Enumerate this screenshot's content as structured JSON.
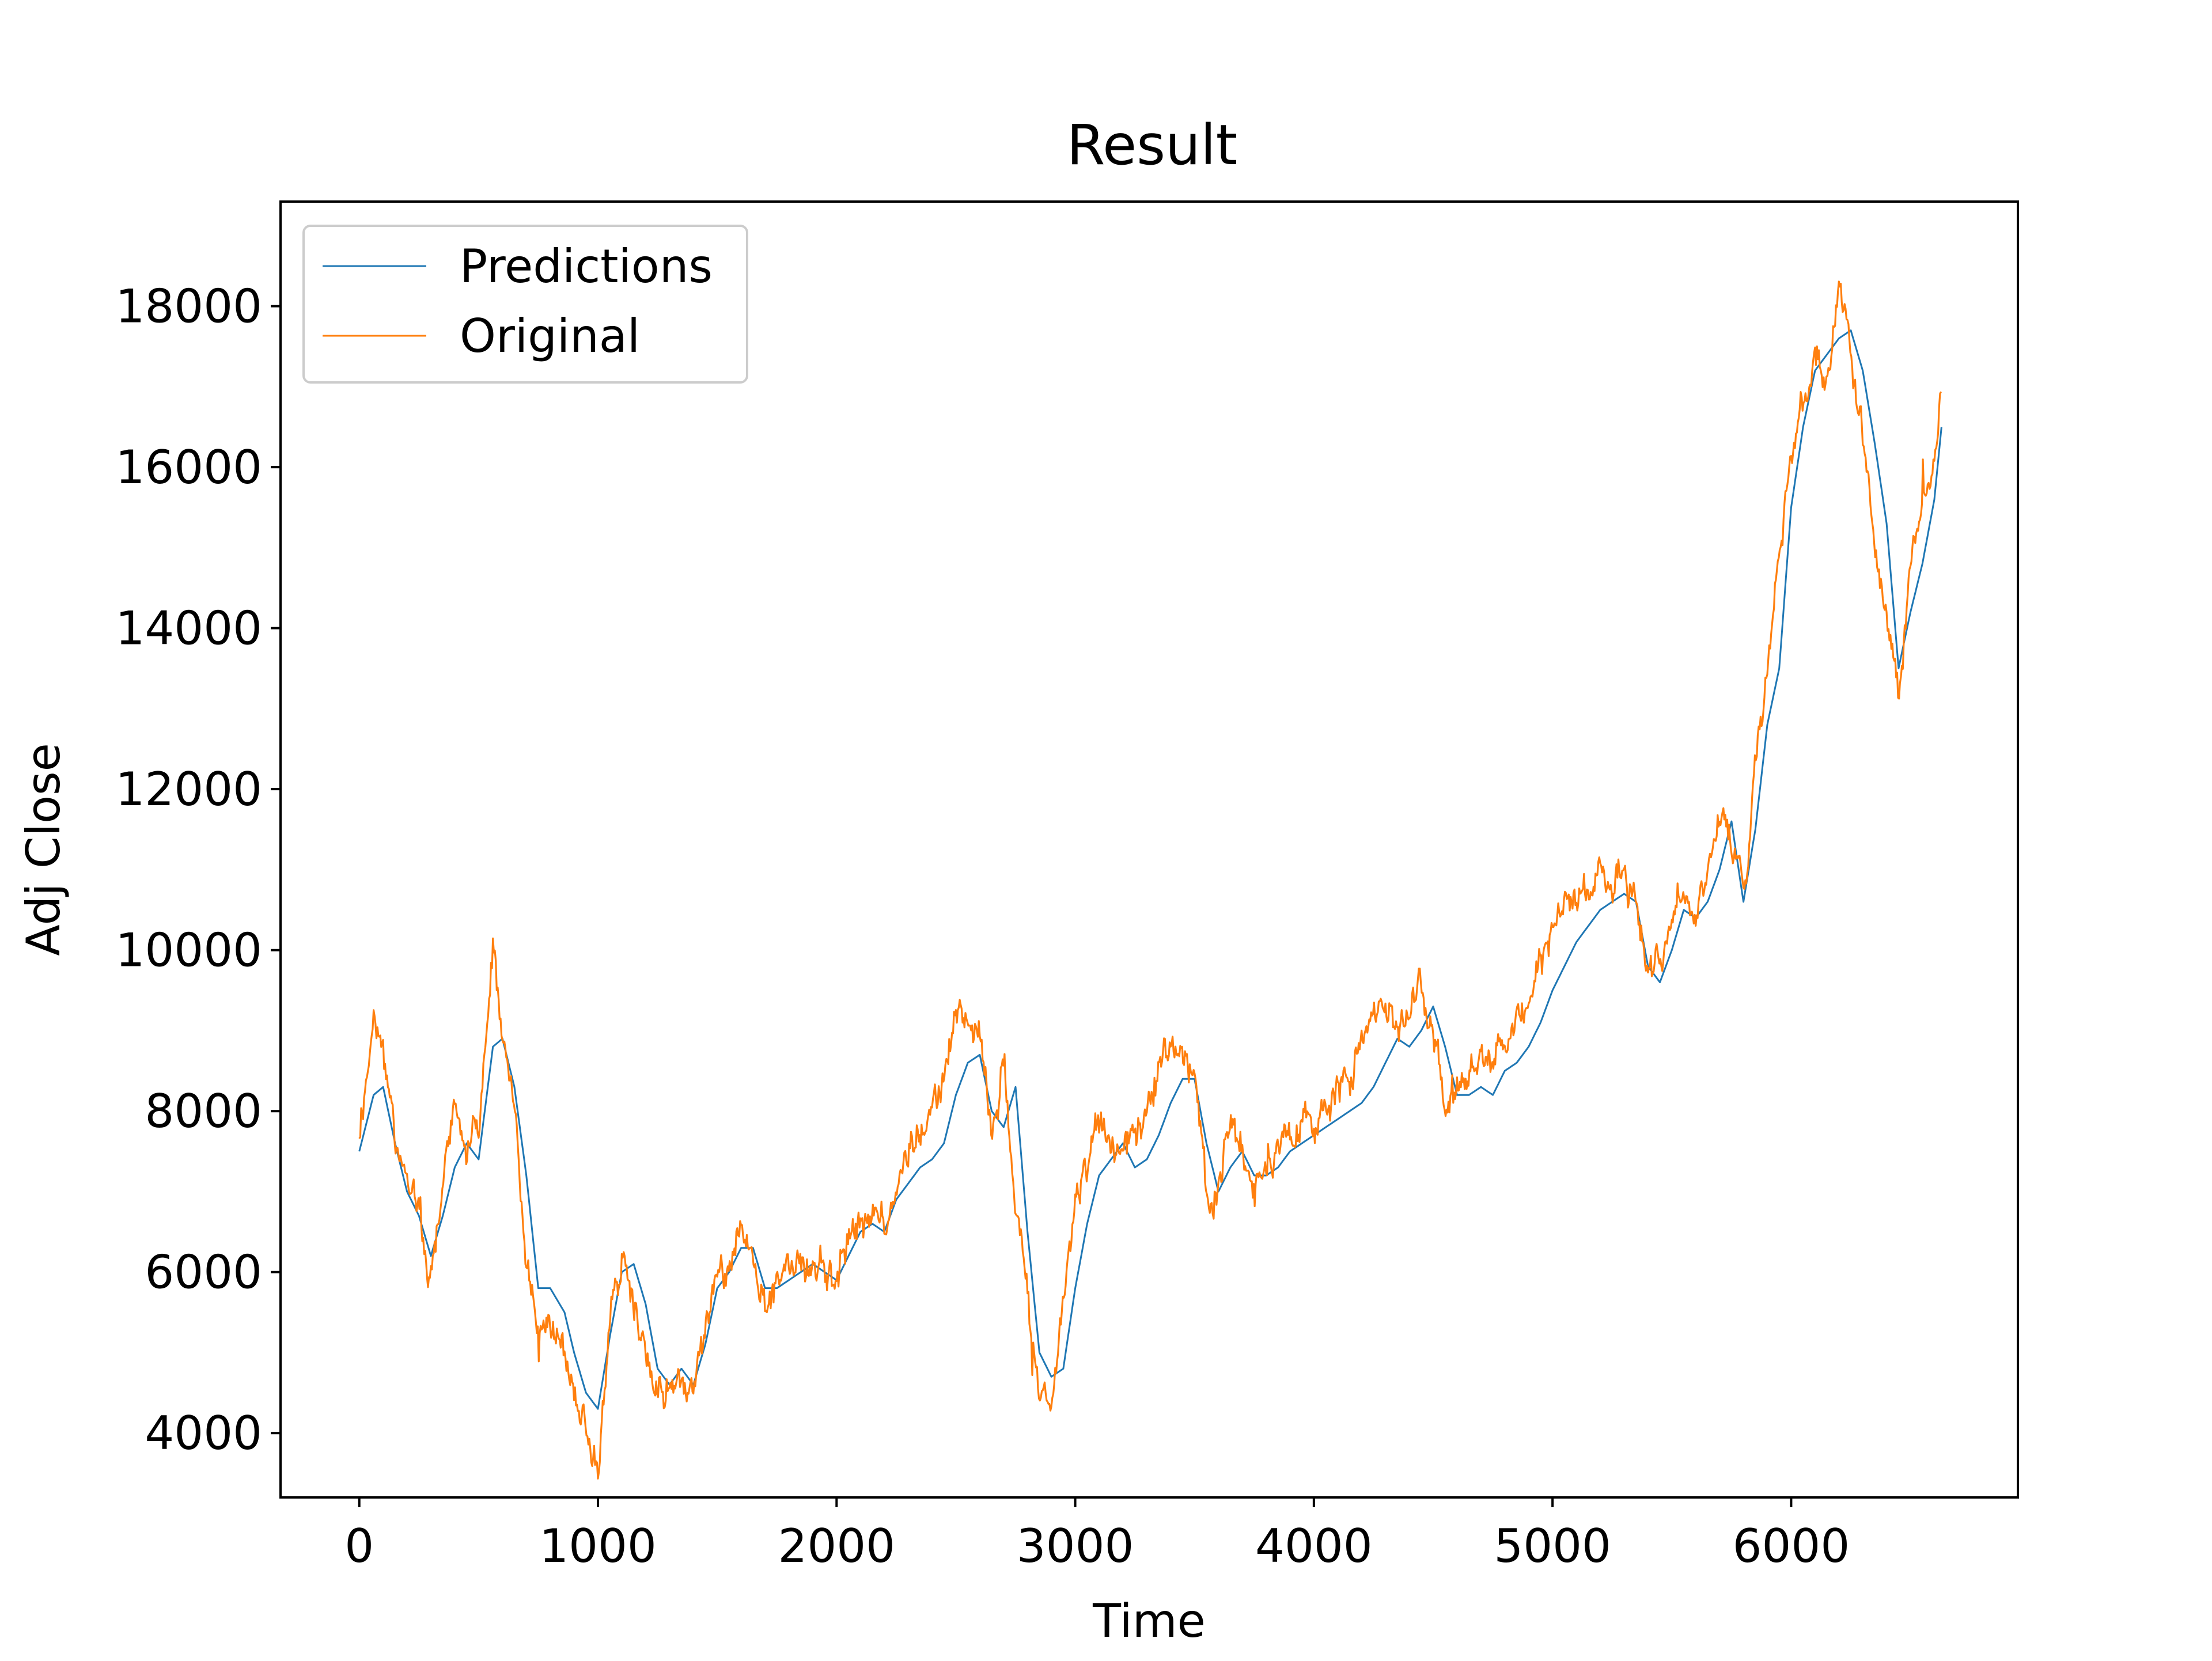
{
  "chart_data": {
    "type": "line",
    "title": "Result",
    "xlabel": "Time",
    "ylabel": "Adj Close",
    "xlim": [
      -330,
      6950
    ],
    "ylim": [
      3200,
      19300
    ],
    "xticks": [
      0,
      1000,
      2000,
      3000,
      4000,
      5000,
      6000
    ],
    "xtick_labels": [
      "0",
      "1000",
      "2000",
      "3000",
      "4000",
      "5000",
      "6000"
    ],
    "yticks": [
      4000,
      6000,
      8000,
      10000,
      12000,
      14000,
      16000,
      18000
    ],
    "ytick_labels": [
      "4000",
      "6000",
      "8000",
      "10000",
      "12000",
      "14000",
      "16000",
      "18000"
    ],
    "grid": false,
    "legend": {
      "placement": "upper-left"
    },
    "series": [
      {
        "name": "Predictions",
        "color": "#1f77b4",
        "style": "smoothed",
        "x": [
          0,
          60,
          100,
          150,
          200,
          250,
          300,
          350,
          400,
          450,
          500,
          560,
          600,
          650,
          700,
          750,
          800,
          860,
          900,
          950,
          1000,
          1050,
          1100,
          1150,
          1200,
          1250,
          1300,
          1350,
          1400,
          1450,
          1500,
          1550,
          1600,
          1650,
          1700,
          1750,
          1800,
          1850,
          1900,
          1950,
          2000,
          2050,
          2100,
          2150,
          2200,
          2250,
          2300,
          2350,
          2400,
          2450,
          2500,
          2550,
          2600,
          2650,
          2700,
          2750,
          2800,
          2850,
          2900,
          2950,
          3000,
          3050,
          3100,
          3150,
          3200,
          3250,
          3300,
          3350,
          3400,
          3450,
          3500,
          3550,
          3600,
          3650,
          3700,
          3750,
          3800,
          3850,
          3900,
          3950,
          4000,
          4050,
          4100,
          4150,
          4200,
          4250,
          4300,
          4350,
          4400,
          4450,
          4500,
          4550,
          4600,
          4650,
          4700,
          4750,
          4800,
          4850,
          4900,
          4950,
          5000,
          5050,
          5100,
          5150,
          5200,
          5250,
          5300,
          5350,
          5400,
          5450,
          5500,
          5550,
          5600,
          5650,
          5700,
          5750,
          5800,
          5850,
          5900,
          5950,
          6000,
          6050,
          6100,
          6150,
          6200,
          6250,
          6300,
          6350,
          6400,
          6450,
          6500,
          6550,
          6600,
          6630
        ],
        "y": [
          7500,
          8200,
          8300,
          7600,
          7000,
          6700,
          6200,
          6700,
          7300,
          7600,
          7400,
          8800,
          8900,
          8300,
          7200,
          5800,
          5800,
          5500,
          5000,
          4500,
          4300,
          5200,
          6000,
          6100,
          5600,
          4800,
          4600,
          4800,
          4600,
          5100,
          5800,
          6000,
          6300,
          6300,
          5800,
          5800,
          5900,
          6000,
          6100,
          6000,
          5900,
          6200,
          6500,
          6600,
          6500,
          6900,
          7100,
          7300,
          7400,
          7600,
          8200,
          8600,
          8700,
          8000,
          7800,
          8300,
          6500,
          5000,
          4700,
          4800,
          5800,
          6600,
          7200,
          7400,
          7600,
          7300,
          7400,
          7700,
          8100,
          8400,
          8400,
          7600,
          7000,
          7300,
          7500,
          7200,
          7200,
          7300,
          7500,
          7600,
          7700,
          7800,
          7900,
          8000,
          8100,
          8300,
          8600,
          8900,
          8800,
          9000,
          9300,
          8800,
          8200,
          8200,
          8300,
          8200,
          8500,
          8600,
          8800,
          9100,
          9500,
          9800,
          10100,
          10300,
          10500,
          10600,
          10700,
          10600,
          9800,
          9600,
          10000,
          10500,
          10400,
          10600,
          11000,
          11600,
          10600,
          11500,
          12800,
          13500,
          15500,
          16500,
          17200,
          17400,
          17600,
          17700,
          17200,
          16300,
          15300,
          13500,
          14200,
          14800,
          15600,
          16500
        ]
      },
      {
        "name": "Original",
        "color": "#ff7f0e",
        "style": "noisy",
        "x": [
          0,
          60,
          100,
          150,
          200,
          250,
          300,
          350,
          400,
          450,
          500,
          560,
          600,
          650,
          700,
          750,
          800,
          860,
          900,
          950,
          1000,
          1050,
          1100,
          1150,
          1200,
          1250,
          1300,
          1350,
          1400,
          1450,
          1500,
          1550,
          1600,
          1650,
          1700,
          1750,
          1800,
          1850,
          1900,
          1950,
          2000,
          2050,
          2100,
          2150,
          2200,
          2250,
          2300,
          2350,
          2400,
          2450,
          2500,
          2550,
          2600,
          2650,
          2700,
          2750,
          2800,
          2850,
          2900,
          2950,
          3000,
          3050,
          3100,
          3150,
          3200,
          3250,
          3300,
          3350,
          3400,
          3450,
          3500,
          3550,
          3600,
          3650,
          3700,
          3750,
          3800,
          3850,
          3900,
          3950,
          4000,
          4050,
          4100,
          4150,
          4200,
          4250,
          4300,
          4350,
          4400,
          4450,
          4500,
          4550,
          4600,
          4650,
          4700,
          4750,
          4800,
          4850,
          4900,
          4950,
          5000,
          5050,
          5100,
          5150,
          5200,
          5250,
          5300,
          5350,
          5400,
          5450,
          5500,
          5550,
          5600,
          5650,
          5700,
          5750,
          5800,
          5850,
          5900,
          5950,
          6000,
          6050,
          6100,
          6150,
          6200,
          6250,
          6300,
          6350,
          6400,
          6450,
          6500,
          6550,
          6600,
          6630
        ],
        "y": [
          7800,
          9200,
          8800,
          7600,
          7200,
          6600,
          5900,
          7100,
          8000,
          7600,
          7800,
          10000,
          9000,
          8000,
          6200,
          5400,
          5200,
          5000,
          4500,
          4000,
          3700,
          5400,
          6200,
          5600,
          5000,
          4400,
          4600,
          4600,
          4400,
          5300,
          5900,
          6100,
          6800,
          6200,
          5600,
          5800,
          6000,
          6100,
          6000,
          5900,
          6000,
          6400,
          6700,
          6800,
          6600,
          7200,
          7500,
          7800,
          8000,
          8400,
          9300,
          9100,
          9000,
          7800,
          8700,
          7000,
          5600,
          4300,
          4400,
          5600,
          6700,
          7300,
          7900,
          7600,
          7600,
          7700,
          8100,
          8500,
          8900,
          8600,
          8500,
          7000,
          7100,
          7800,
          7500,
          7000,
          7300,
          7600,
          7800,
          7900,
          7800,
          8200,
          8300,
          8400,
          8800,
          9200,
          9300,
          9000,
          9400,
          9600,
          9200,
          7900,
          8500,
          8700,
          8600,
          8400,
          9000,
          9200,
          9400,
          9800,
          10200,
          10500,
          10700,
          10800,
          11000,
          10900,
          11000,
          10700,
          9700,
          10000,
          10600,
          10800,
          10500,
          11000,
          11800,
          11200,
          10700,
          12500,
          13400,
          15000,
          16300,
          16800,
          17500,
          17000,
          18200,
          17300,
          16300,
          15000,
          14000,
          13000,
          14800,
          15500,
          16000,
          17000
        ]
      }
    ]
  }
}
